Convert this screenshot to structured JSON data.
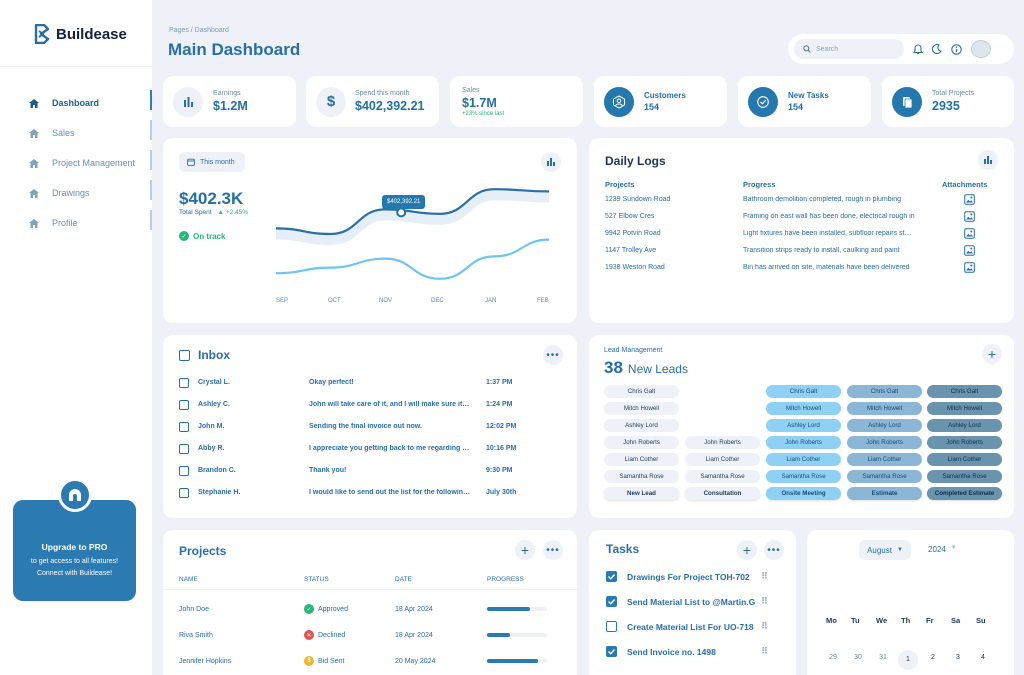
{
  "app": {
    "name": "Buildease"
  },
  "sidebar": {
    "items": [
      {
        "label": "Dashboard",
        "active": true
      },
      {
        "label": "Sales",
        "active": false
      },
      {
        "label": "Project Management",
        "active": false
      },
      {
        "label": "Drawings",
        "active": false
      },
      {
        "label": "Profile",
        "active": false
      }
    ],
    "upgrade": {
      "title": "Upgrade to PRO",
      "line1": "to get access to all features!",
      "line2": "Connect with Buildease!"
    }
  },
  "header": {
    "breadcrumb": "Pages / Dashboard",
    "title": "Main Dashboard",
    "search_placeholder": "Search"
  },
  "stats": [
    {
      "label": "Earnings",
      "value": "$1.2M",
      "icon": "bar-chart-icon"
    },
    {
      "label": "Spend this month",
      "value": "$402,392.21",
      "icon": "dollar-icon"
    },
    {
      "label": "Sales",
      "value": "$1.7M",
      "sub": "+23% since last"
    },
    {
      "label": "Customers",
      "value": "154",
      "icon": "user-icon"
    },
    {
      "label": "New Tasks",
      "value": "154",
      "icon": "check-icon"
    },
    {
      "label": "Total Projects",
      "value": "2935",
      "icon": "document-icon"
    }
  ],
  "spending": {
    "period": "This month",
    "value": "$402.3K",
    "label": "Total Spent",
    "change": "+2.45%",
    "status": "On track",
    "tooltip": "$402,392.21",
    "months": [
      "SEP",
      "OCT",
      "NOV",
      "DEC",
      "JAN",
      "FEB"
    ]
  },
  "chart_data": {
    "type": "line",
    "categories": [
      "SEP",
      "OCT",
      "NOV",
      "DEC",
      "JAN",
      "FEB"
    ],
    "series": [
      {
        "values": [
          0.55,
          0.5,
          0.72,
          0.68,
          0.9,
          0.88
        ],
        "color": "#2a6ea4"
      },
      {
        "values": [
          0.15,
          0.2,
          0.28,
          0.1,
          0.3,
          0.45
        ],
        "color": "#6cc6ef"
      }
    ],
    "grid": false
  },
  "daily_logs": {
    "title": "Daily Logs",
    "columns": [
      "Projects",
      "Progress",
      "Attachments"
    ],
    "rows": [
      {
        "project": "1239 Sundown Road",
        "progress": "Bathroom demolition completed, rough in plumbing"
      },
      {
        "project": "527 Elbow Cres",
        "progress": "Framing on east wall has been done, electrical rough in"
      },
      {
        "project": "9942 Potvin Road",
        "progress": "Light fixtures have been installed, subfloor repairs started"
      },
      {
        "project": "1147 Trolley Ave",
        "progress": "Transition strips ready to install, caulking and paint"
      },
      {
        "project": "1938 Weston Road",
        "progress": "Bin has arrived on site, materials have been delivered"
      }
    ]
  },
  "inbox": {
    "title": "Inbox",
    "rows": [
      {
        "name": "Crystal L.",
        "message": "Okay perfect!",
        "time": "1:37 PM"
      },
      {
        "name": "Ashley C.",
        "message": "John will take care of it, and I will make sure it gets done",
        "time": "1:24 PM"
      },
      {
        "name": "John M.",
        "message": "Sending the final invoice out now.",
        "time": "12:02 PM"
      },
      {
        "name": "Abby R.",
        "message": "I appreciate you getting back to me regarding the project",
        "time": "10:16 PM"
      },
      {
        "name": "Brandon C.",
        "message": "Thank you!",
        "time": "9:30 PM"
      },
      {
        "name": "Stephanie H.",
        "message": "I would like to send out the list for the following week",
        "time": "July 30th"
      }
    ]
  },
  "leads": {
    "label": "Lead Management",
    "count": "38",
    "count_label": "New Leads",
    "columns": [
      {
        "head": "New Lead",
        "names": [
          "Chris Galt",
          "Mitch Howell",
          "Ashley Lord",
          "John Roberts",
          "Liam Cother",
          "Samantha Rose"
        ]
      },
      {
        "head": "Consultation",
        "names": [
          "John Roberts",
          "Liam Cother",
          "Samantha Rose"
        ]
      },
      {
        "head": "Onsite Meeting",
        "names": [
          "Chris Galt",
          "Mitch Howell",
          "Ashley Lord",
          "John Roberts",
          "Liam Cother",
          "Samantha Rose"
        ]
      },
      {
        "head": "Estimate",
        "names": [
          "Chris Galt",
          "Mitch Howell",
          "Ashley Lord",
          "John Roberts",
          "Liam Cother",
          "Samantha Rose"
        ]
      },
      {
        "head": "Completed Estimate",
        "names": [
          "Chris Galt",
          "Mitch Howell",
          "Ashley Lord",
          "John Roberts",
          "Liam Cother",
          "Samantha Rose"
        ]
      }
    ]
  },
  "projects": {
    "title": "Projects",
    "columns": [
      "NAME",
      "STATUS",
      "DATE",
      "PROGRESS"
    ],
    "rows": [
      {
        "name": "John Doe",
        "status": "Approved",
        "date": "18 Apr 2024",
        "progress": 0.72,
        "color": "#26b67a"
      },
      {
        "name": "Riva Smith",
        "status": "Declined",
        "date": "18 Apr 2024",
        "progress": 0.38,
        "color": "#e25454"
      },
      {
        "name": "Jennifer Hopkins",
        "status": "Bid Sent",
        "date": "20 May 2024",
        "progress": 0.85,
        "color": "#f2b52a"
      }
    ]
  },
  "tasks": {
    "title": "Tasks",
    "rows": [
      {
        "label": "Drawings For Project TOH-702",
        "done": true
      },
      {
        "label": "Send Material List to @Martin.G",
        "done": true
      },
      {
        "label": "Create Material List For UO-718",
        "done": false
      },
      {
        "label": "Send Invoice no. 1498",
        "done": true
      }
    ]
  },
  "calendar": {
    "month": "August",
    "year": "2024",
    "days": [
      "Mo",
      "Tu",
      "We",
      "Th",
      "Fr",
      "Sa",
      "Su"
    ],
    "dates": [
      "29",
      "30",
      "31",
      "1",
      "2",
      "3",
      "4"
    ]
  }
}
